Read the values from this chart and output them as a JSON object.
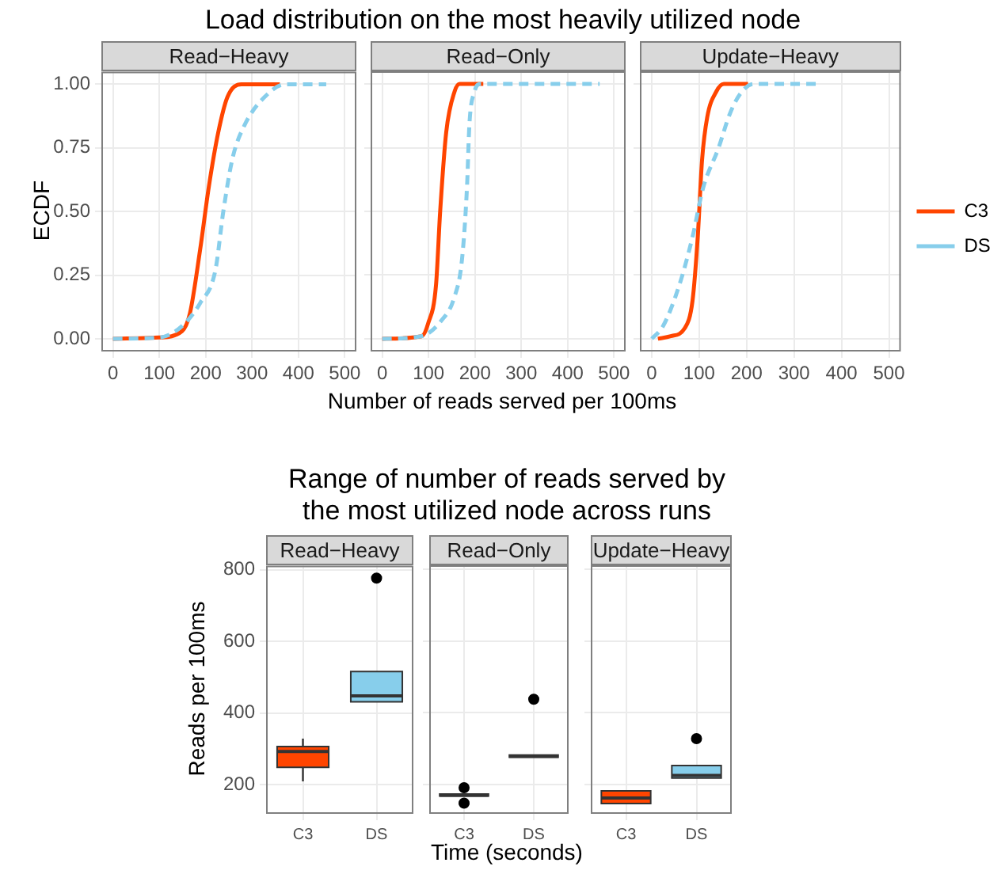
{
  "chart_data": [
    {
      "type": "line",
      "title": "Load distribution on the most heavily utilized node",
      "subtitle": "Read−Heavy",
      "ylabel": "ECDF",
      "xlim": [
        -25,
        525
      ],
      "ylim": [
        -0.05,
        1.05
      ],
      "xticks": [
        0,
        100,
        200,
        300,
        400,
        500
      ],
      "yticks": [
        {
          "value": 0,
          "label": "0.00"
        },
        {
          "value": 0.25,
          "label": "0.25"
        },
        {
          "value": 0.5,
          "label": "0.50"
        },
        {
          "value": 0.75,
          "label": "0.75"
        },
        {
          "value": 1,
          "label": "1.00"
        }
      ],
      "grid": true,
      "marker": "none",
      "series": [
        {
          "color": "#ff4500",
          "line_style": "solid",
          "x": [
            0,
            99,
            149,
            166,
            188,
            207,
            227,
            247,
            277,
            360
          ],
          "values": [
            0,
            0.005,
            0.03,
            0.1,
            0.35,
            0.6,
            0.81,
            0.95,
            1,
            1
          ]
        },
        {
          "color": "#87ceeb",
          "line_style": "dashed",
          "x": [
            0,
            100,
            149,
            188,
            221,
            238,
            258,
            284,
            327,
            371,
            460
          ],
          "values": [
            0,
            0.005,
            0.05,
            0.14,
            0.27,
            0.5,
            0.71,
            0.84,
            0.95,
            1,
            1
          ]
        }
      ]
    },
    {
      "type": "line",
      "subtitle": "Read−Only",
      "xlabel": "Number of reads served per 100ms",
      "xlim": [
        -25,
        525
      ],
      "ylim": [
        -0.05,
        1.05
      ],
      "xticks": [
        0,
        100,
        200,
        300,
        400,
        500
      ],
      "yticks": [
        0,
        0.25,
        0.5,
        0.75,
        1
      ],
      "grid": true,
      "marker": "none",
      "tick_labels": "x",
      "series": [
        {
          "color": "#ff4500",
          "line_style": "solid",
          "x": [
            0,
            85,
            99,
            116,
            125,
            138,
            156,
            167,
            218
          ],
          "values": [
            0,
            0.01,
            0.06,
            0.21,
            0.5,
            0.81,
            0.97,
            1,
            1
          ]
        },
        {
          "color": "#87ceeb",
          "line_style": "dashed",
          "x": [
            0,
            84,
            127,
            155,
            172,
            183,
            188,
            199,
            212,
            469
          ],
          "values": [
            0,
            0.01,
            0.07,
            0.16,
            0.31,
            0.6,
            0.84,
            0.97,
            1,
            1
          ]
        }
      ]
    },
    {
      "type": "line",
      "subtitle": "Update−Heavy",
      "xlim": [
        -25,
        525
      ],
      "ylim": [
        -0.05,
        1.05
      ],
      "xticks": [
        0,
        100,
        200,
        300,
        400,
        500
      ],
      "yticks": [
        0,
        0.25,
        0.5,
        0.75,
        1
      ],
      "grid": true,
      "marker": "none",
      "tick_labels": "x",
      "legend": "right",
      "series": [
        {
          "name": "C3",
          "color": "#ff4500",
          "line_style": "solid",
          "x": [
            13,
            40,
            69,
            86,
            97,
            106,
            117,
            136,
            152,
            203
          ],
          "values": [
            0,
            0.01,
            0.04,
            0.15,
            0.4,
            0.7,
            0.87,
            0.97,
            1,
            1
          ]
        },
        {
          "name": "DS",
          "color": "#87ceeb",
          "line_style": "dashed",
          "x": [
            0,
            24,
            58,
            86,
            108,
            141,
            164,
            186,
            214,
            353
          ],
          "values": [
            0,
            0.05,
            0.21,
            0.4,
            0.59,
            0.75,
            0.88,
            0.96,
            1,
            1
          ]
        }
      ]
    },
    {
      "type": "box",
      "title": "Range of number of reads served by the most utilized node across runs",
      "subtitle": "Read−Heavy",
      "ylabel": "Reads per 100ms",
      "categories": [
        "C3",
        "DS"
      ],
      "colors": [
        "#ff4500",
        "#87ceeb"
      ],
      "ylim": [
        118,
        812
      ],
      "yticks": [
        200,
        400,
        600,
        800
      ],
      "grid": true,
      "boxes": [
        {
          "low": 209,
          "q1": 248,
          "median": 292,
          "q3": 306,
          "high": 328
        },
        {
          "low": 431,
          "q1": 431,
          "median": 448,
          "q3": 516,
          "high": 516,
          "outliers": [
            777
          ]
        }
      ]
    },
    {
      "type": "box",
      "subtitle": "Read−Only",
      "xlabel": "Time (seconds)",
      "categories": [
        "C3",
        "DS"
      ],
      "colors": [
        "#ff4500",
        "#87ceeb"
      ],
      "ylim": [
        118,
        812
      ],
      "yticks": [
        200,
        400,
        600,
        800
      ],
      "grid": true,
      "tick_labels": "x",
      "boxes": [
        {
          "low": 168,
          "q1": 168,
          "median": 170,
          "q3": 173,
          "high": 173,
          "outliers": [
            191,
            148
          ]
        },
        {
          "low": 276,
          "q1": 276,
          "median": 279,
          "q3": 282,
          "high": 282,
          "outliers": [
            438
          ]
        }
      ]
    },
    {
      "type": "box",
      "subtitle": "Update−Heavy",
      "categories": [
        "C3",
        "DS"
      ],
      "colors": [
        "#ff4500",
        "#87ceeb"
      ],
      "ylim": [
        118,
        812
      ],
      "yticks": [
        200,
        400,
        600,
        800
      ],
      "grid": true,
      "tick_labels": "x",
      "boxes": [
        {
          "low": 147,
          "q1": 147,
          "median": 162,
          "q3": 182,
          "high": 182
        },
        {
          "low": 218,
          "q1": 218,
          "median": 225,
          "q3": 253,
          "high": 253,
          "outliers": [
            328
          ]
        }
      ]
    }
  ]
}
